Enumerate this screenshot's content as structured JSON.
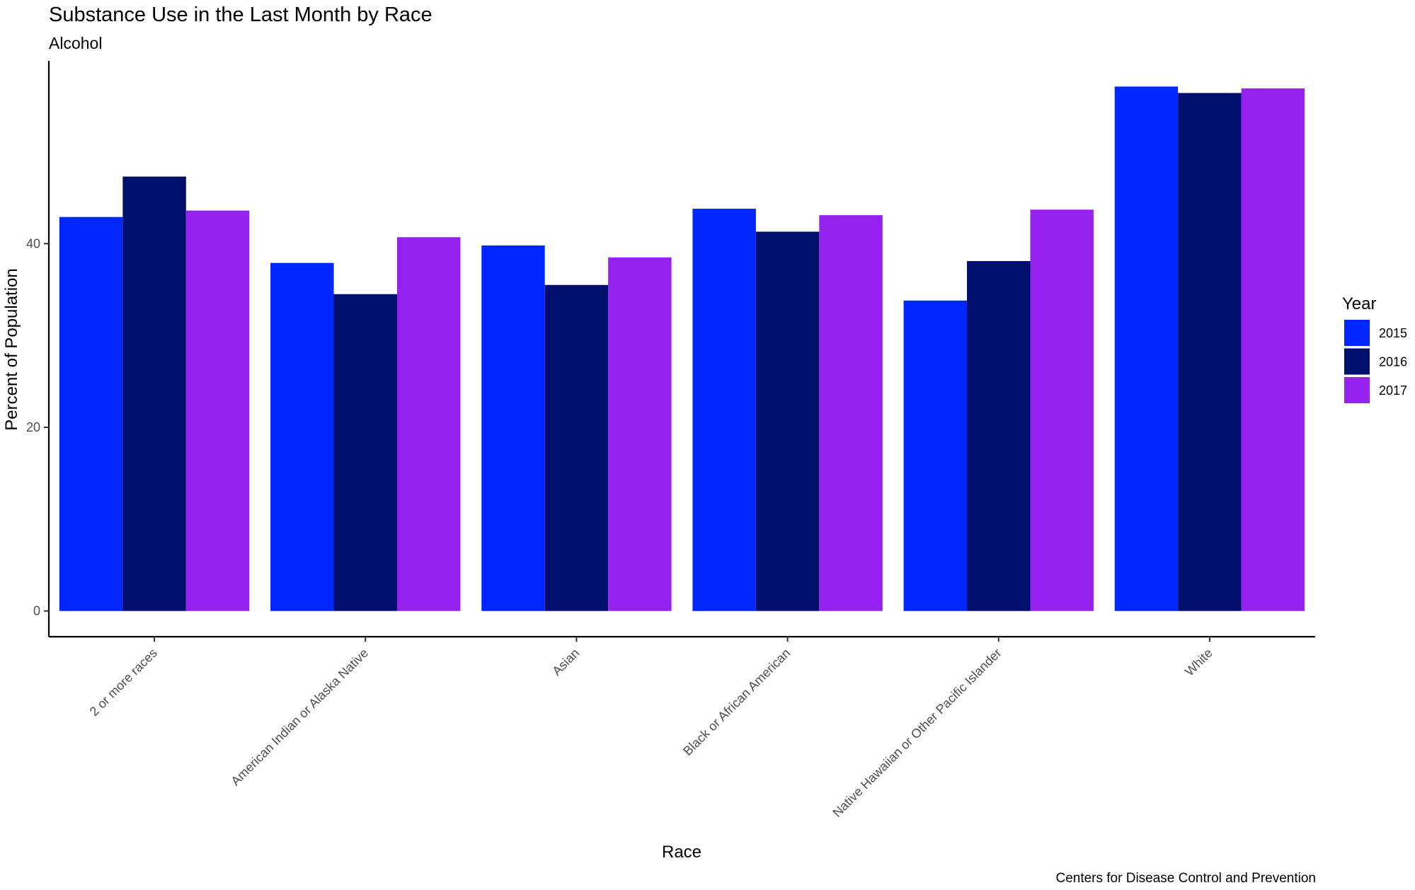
{
  "chart_data": {
    "type": "bar",
    "title": "Substance Use in the Last Month by Race",
    "subtitle": "Alcohol",
    "xlabel": "Race",
    "ylabel": "Percent of Population",
    "caption": "Centers for Disease Control and Prevention",
    "legend_title": "Year",
    "legend_position": "right",
    "grid": false,
    "categories": [
      "2 or more races",
      "American Indian or Alaska Native",
      "Asian",
      "Black or African American",
      "Native Hawaiian or Other Pacific Islander",
      "White"
    ],
    "series": [
      {
        "name": "2015",
        "color": "#0026ff",
        "values": [
          42.9,
          37.9,
          39.8,
          43.8,
          33.8,
          57.1
        ]
      },
      {
        "name": "2016",
        "color": "#000f6e",
        "values": [
          47.3,
          34.5,
          35.5,
          41.3,
          38.1,
          56.4
        ]
      },
      {
        "name": "2017",
        "color": "#9622ef",
        "values": [
          43.6,
          40.7,
          38.5,
          43.1,
          43.7,
          56.9
        ]
      }
    ],
    "ylim": [
      -2.8,
      59.9
    ],
    "yticks": [
      0,
      20,
      40
    ],
    "ytick_labels": [
      "0",
      "20",
      "40"
    ]
  }
}
